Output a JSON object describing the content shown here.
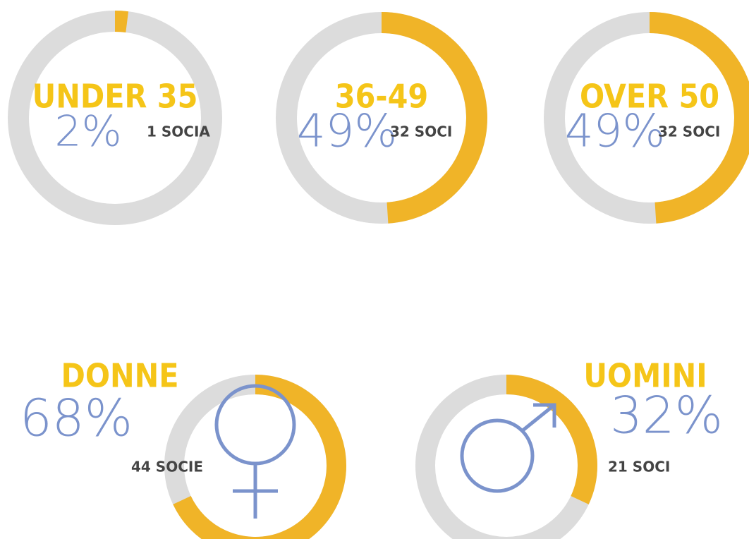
{
  "chart_data": [
    {
      "type": "donut",
      "title": "UNDER 35",
      "values": [
        2
      ],
      "value_labels": [
        "2%"
      ],
      "subtitle": "1 SOCIA",
      "color": "#f0b428"
    },
    {
      "type": "donut",
      "title": "36-49",
      "values": [
        49
      ],
      "value_labels": [
        "49%"
      ],
      "subtitle": "32 SOCI",
      "color": "#f0b428"
    },
    {
      "type": "donut",
      "title": "OVER 50",
      "values": [
        49
      ],
      "value_labels": [
        "49%"
      ],
      "subtitle": "32 SOCI",
      "color": "#f0b428"
    },
    {
      "type": "donut",
      "title": "DONNE",
      "values": [
        68
      ],
      "value_labels": [
        "68%"
      ],
      "subtitle": "44 SOCIE",
      "color": "#f0b428"
    },
    {
      "type": "donut",
      "title": "UOMINI",
      "values": [
        32
      ],
      "value_labels": [
        "32%"
      ],
      "subtitle": "21 SOCI",
      "color": "#f0b428"
    }
  ]
}
